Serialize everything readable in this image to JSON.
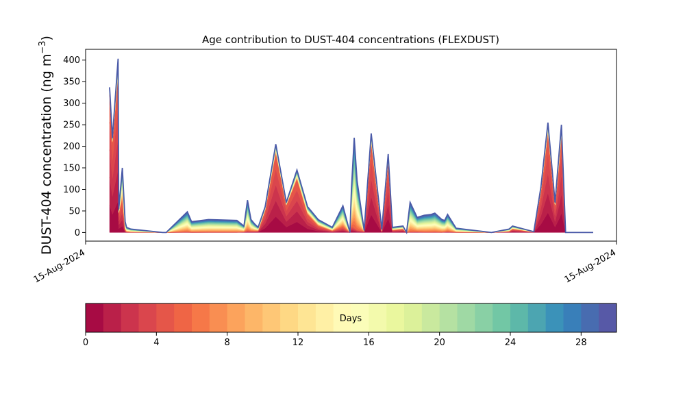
{
  "chart_data": {
    "type": "area",
    "title": "Age contribution to DUST-404 concentrations (FLEXDUST)",
    "ylabel": "DUST-404 concentration (ng m",
    "ylabel_sup": "−3",
    "ylabel_close": ")",
    "xlabel": "",
    "ylim": [
      -20,
      425
    ],
    "yticks": [
      0,
      50,
      100,
      150,
      200,
      250,
      300,
      350,
      400
    ],
    "x_tick_labels": [
      "15-Aug-2024",
      "15-Aug-2024"
    ],
    "grid": false,
    "colorbar": {
      "label": "Days",
      "range": [
        0,
        30
      ],
      "ticks": [
        0,
        4,
        8,
        12,
        16,
        20,
        24,
        28
      ],
      "colormap": "Spectral",
      "n_bins": 30
    },
    "x": [
      0.0,
      0.4,
      1.2,
      1.3,
      1.8,
      2.2,
      2.4,
      3.0,
      7.5,
      8.0,
      11.0,
      11.6,
      14.0,
      18.0,
      19.0,
      19.5,
      20.0,
      20.5,
      21.0,
      22.0,
      23.5,
      25.0,
      26.5,
      28.0,
      29.5,
      31.5,
      33.0,
      34.0,
      34.2,
      34.6,
      35.0,
      36.0,
      37.0,
      38.5,
      39.4,
      40.0,
      41.5,
      42.0,
      42.5,
      43.5,
      44.5,
      45.5,
      46.0,
      47.0,
      47.4,
      47.8,
      49.0,
      54.0,
      56.5,
      57.0,
      60.0,
      61.0,
      62.0,
      63.0,
      63.6,
      63.9,
      64.5,
      65.0,
      65.5,
      66.0,
      67.0,
      68.0,
      68.4
    ],
    "total": [
      337,
      220,
      403,
      55,
      150,
      25,
      12,
      8,
      0,
      0,
      48,
      25,
      30,
      28,
      15,
      75,
      30,
      20,
      12,
      60,
      205,
      70,
      145,
      60,
      30,
      12,
      62,
      0,
      100,
      220,
      120,
      5,
      230,
      8,
      182,
      12,
      15,
      0,
      70,
      35,
      40,
      42,
      45,
      30,
      28,
      42,
      10,
      0,
      8,
      15,
      2,
      105,
      255,
      70,
      190,
      250,
      0,
      0,
      0,
      0,
      0,
      0,
      0
    ],
    "young_share_0_5": [
      0.95,
      0.95,
      0.9,
      0.8,
      0.5,
      0.2,
      0.1,
      0.1,
      0,
      0,
      0.02,
      0.02,
      0.02,
      0.02,
      0.1,
      0.05,
      0.1,
      0.15,
      0.3,
      0.85,
      0.9,
      0.9,
      0.85,
      0.7,
      0.5,
      0.3,
      0.2,
      0,
      0.15,
      0.05,
      0.05,
      0.5,
      0.9,
      0.3,
      0.9,
      0.4,
      0.5,
      0,
      0.02,
      0.05,
      0.02,
      0.02,
      0.02,
      0.02,
      0.05,
      0.05,
      0.05,
      0,
      0.3,
      0.5,
      0.5,
      0.9,
      0.9,
      0.9,
      0.85,
      0.9,
      0,
      0,
      0,
      0,
      0,
      0,
      0
    ]
  }
}
